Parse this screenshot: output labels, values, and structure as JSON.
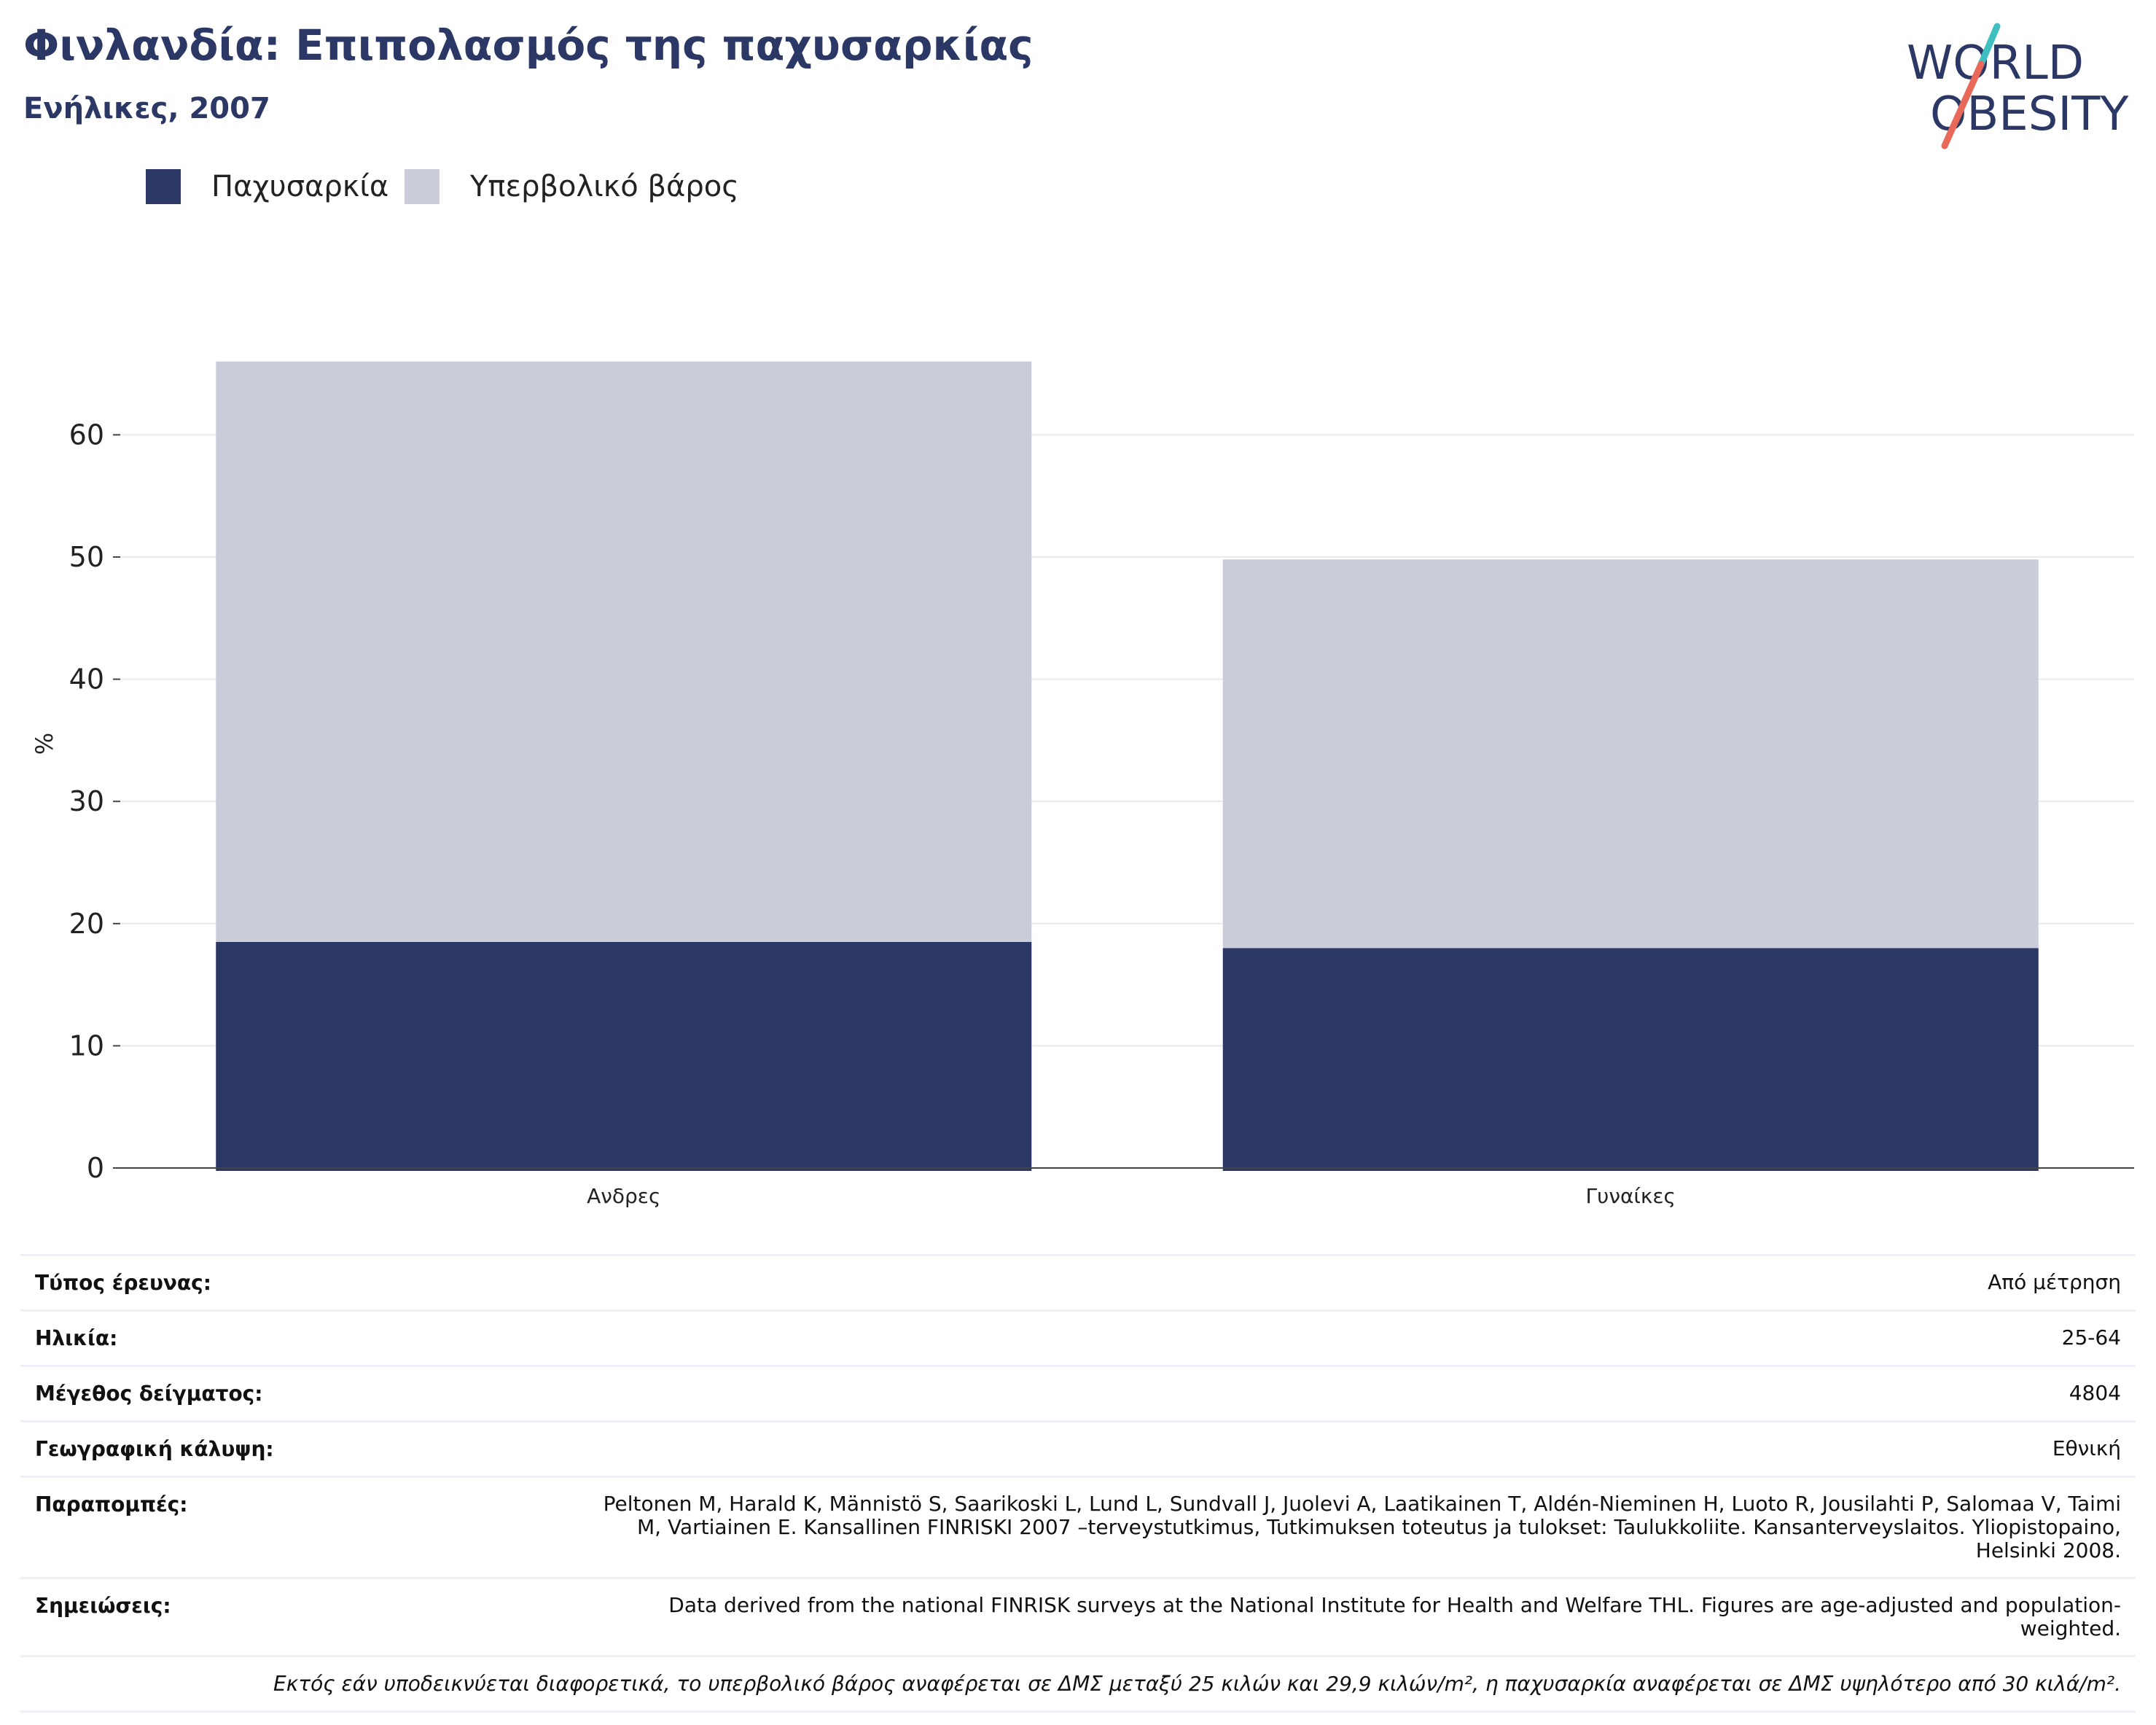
{
  "header": {
    "title": "Φινλανδία: Επιπολασμός της παχυσαρκίας",
    "subtitle": "Ενήλικες, 2007"
  },
  "logo": {
    "line1": "WORLD",
    "line2": "OBESITY",
    "colors": {
      "text": "#2b3764",
      "slash_top": "#3fbfbf",
      "slash_bottom": "#e8685a"
    }
  },
  "chart_data": {
    "type": "bar",
    "stacked": true,
    "categories": [
      "Ανδρες",
      "Γυναίκες"
    ],
    "series": [
      {
        "name": "Παχυσαρκία",
        "color": "#2b3764",
        "values": [
          18.5,
          18.0
        ]
      },
      {
        "name": "Υπερβολικό βάρος",
        "color": "#cacdd9",
        "values": [
          47.5,
          31.8
        ]
      }
    ],
    "ylabel": "%",
    "xlabel": "",
    "ylim": [
      0,
      70
    ],
    "yticks": [
      0,
      10,
      20,
      30,
      40,
      50,
      60
    ],
    "grid": true,
    "legend": "top-left"
  },
  "info": {
    "rows": [
      {
        "key": "Τύπος έρευνας:",
        "value": "Από μέτρηση"
      },
      {
        "key": "Ηλικία:",
        "value": "25-64"
      },
      {
        "key": "Μέγεθος δείγματος:",
        "value": "4804"
      },
      {
        "key": "Γεωγραφική κάλυψη:",
        "value": "Εθνική"
      },
      {
        "key": "Παραπομπές:",
        "value": "Peltonen M, Harald K, Männistö S, Saarikoski L, Lund L, Sundvall J, Juolevi A, Laatikainen T, Aldén-Nieminen H, Luoto R, Jousilahti P, Salomaa V, Taimi M, Vartiainen E. Kansallinen FINRISKI 2007 –terveystutkimus, Tutkimuksen toteutus ja tulokset: Taulukkoliite. Kansanterveyslaitos. Yliopistopaino, Helsinki 2008."
      },
      {
        "key": "Σημειώσεις:",
        "value": "Data derived from the national FINRISK surveys at the National Institute for Health and Welfare THL. Figures are age-adjusted and population-weighted."
      }
    ],
    "footnote": "Εκτός εάν υποδεικνύεται διαφορετικά, το υπερβολικό βάρος αναφέρεται σε ΔΜΣ μεταξύ 25 κιλών και 29,9 κιλών/m², η παχυσαρκία αναφέρεται σε ΔΜΣ υψηλότερο από 30 κιλά/m²."
  }
}
